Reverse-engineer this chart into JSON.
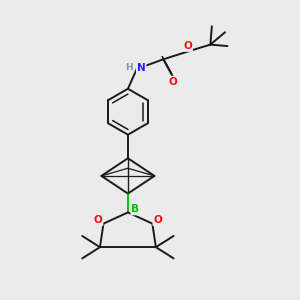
{
  "background_color": "#ebebeb",
  "atom_colors": {
    "C": "#1a1a1a",
    "N": "#2020ff",
    "O": "#ee1111",
    "B": "#00bb00",
    "H": "#7799aa"
  },
  "bond_color": "#1a1a1a",
  "bond_width": 1.4,
  "figsize": [
    3.0,
    3.0
  ],
  "dpi": 100
}
